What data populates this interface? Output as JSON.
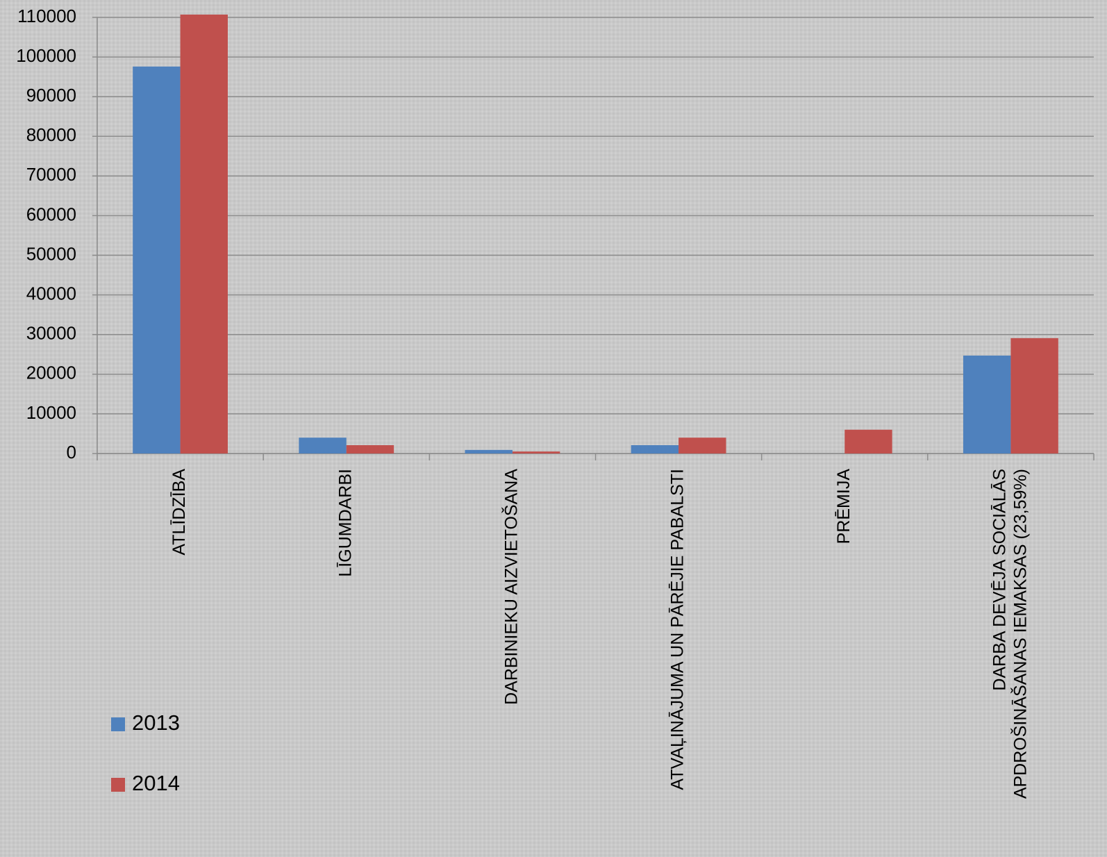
{
  "chart_data": {
    "type": "bar",
    "categories": [
      "ATLĪDZĪBA",
      "LĪGUMDARBI",
      "DARBINIEKU AIZVIETOŠANA",
      "ATVAĻINĀJUMA UN PĀRĒJIE PABALSTI",
      "PRĒMIJA",
      "DARBA DEVĒJA SOCIĀLĀS APDROŠINĀŠANAS IEMAKSAS (23,59%)"
    ],
    "series": [
      {
        "name": "2013",
        "color": "#4f81bd",
        "values": [
          97600,
          4000,
          900,
          2100,
          0,
          24700
        ]
      },
      {
        "name": "2014",
        "color": "#c0504d",
        "values": [
          110700,
          2100,
          500,
          4000,
          6000,
          29100
        ]
      }
    ],
    "ylim": [
      0,
      110000
    ],
    "yticks": [
      0,
      10000,
      20000,
      30000,
      40000,
      50000,
      60000,
      70000,
      80000,
      90000,
      100000,
      110000
    ],
    "grid": true,
    "legend": "bottom-left"
  }
}
